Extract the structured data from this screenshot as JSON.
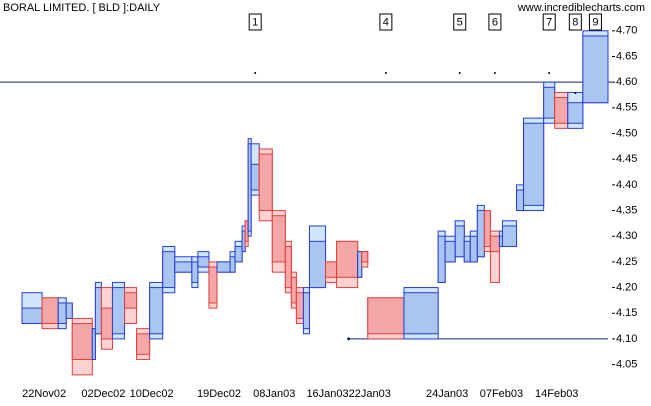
{
  "chart_data": {
    "type": "candlevolume",
    "title": "BORAL LIMITED. [ BLD ]:DAILY",
    "source": "www.incrediblecharts.com",
    "colors": {
      "up": "#2a3fd0",
      "down": "#e04040",
      "line": "#1a2080"
    },
    "ylim": [
      4.02,
      4.76
    ],
    "yticks": [
      4.05,
      {
        "value": 4.1,
        "label": "4.10"
      },
      4.15,
      {
        "value": 4.2,
        "label": "4.20"
      },
      4.25,
      {
        "value": 4.3,
        "label": "4.30"
      },
      4.35,
      {
        "value": 4.4,
        "label": "4.40"
      },
      4.45,
      {
        "value": 4.5,
        "label": "4.50"
      },
      4.55,
      {
        "value": 4.6,
        "label": "4.60"
      },
      4.65,
      {
        "value": 4.7,
        "label": "4.70"
      }
    ],
    "lines": [
      {
        "value": 4.6
      },
      {
        "value": 4.1
      }
    ],
    "candles": [
      {
        "date": null,
        "note": null,
        "volume": 20,
        "open": 4.13,
        "high": 4.19,
        "low": 4.13,
        "close": 4.16
      },
      {
        "date": "22Nov02",
        "note": null,
        "volume": 16,
        "open": 4.18,
        "high": 4.18,
        "low": 4.12,
        "close": 4.13
      },
      {
        "date": null,
        "note": null,
        "volume": 8,
        "open": 4.13,
        "high": 4.18,
        "low": 4.12,
        "close": 4.17
      },
      {
        "date": null,
        "note": null,
        "volume": 6,
        "open": 4.14,
        "high": 4.17,
        "low": 4.14,
        "close": 4.17
      },
      {
        "date": null,
        "note": null,
        "volume": 20,
        "open": 4.13,
        "high": 4.14,
        "low": 4.03,
        "close": 4.06
      },
      {
        "date": null,
        "note": null,
        "volume": 3,
        "open": 4.06,
        "high": 4.12,
        "low": 4.06,
        "close": 4.12
      },
      {
        "date": null,
        "note": null,
        "volume": 6,
        "open": 4.11,
        "high": 4.21,
        "low": 4.11,
        "close": 4.2
      },
      {
        "date": "02Dec02",
        "note": null,
        "volume": 11,
        "open": 4.16,
        "high": 4.2,
        "low": 4.08,
        "close": 4.1
      },
      {
        "date": null,
        "note": null,
        "volume": 12,
        "open": 4.11,
        "high": 4.21,
        "low": 4.1,
        "close": 4.2
      },
      {
        "date": null,
        "note": null,
        "volume": 12,
        "open": 4.19,
        "high": 4.2,
        "low": 4.13,
        "close": 4.16
      },
      {
        "date": null,
        "note": null,
        "volume": 13,
        "open": 4.11,
        "high": 4.12,
        "low": 4.06,
        "close": 4.07
      },
      {
        "date": "10Dec02",
        "note": null,
        "volume": 13,
        "open": 4.11,
        "high": 4.21,
        "low": 4.1,
        "close": 4.2
      },
      {
        "date": null,
        "note": null,
        "volume": 12,
        "open": 4.2,
        "high": 4.28,
        "low": 4.19,
        "close": 4.27
      },
      {
        "date": null,
        "note": null,
        "volume": 17,
        "open": 4.23,
        "high": 4.26,
        "low": 4.23,
        "close": 4.25
      },
      {
        "date": null,
        "note": null,
        "volume": 6,
        "open": 4.21,
        "high": 4.26,
        "low": 4.2,
        "close": 4.25
      },
      {
        "date": null,
        "note": null,
        "volume": 11,
        "open": 4.24,
        "high": 4.27,
        "low": 4.23,
        "close": 4.26
      },
      {
        "date": null,
        "note": null,
        "volume": 8,
        "open": 4.24,
        "high": 4.25,
        "low": 4.16,
        "close": 4.17
      },
      {
        "date": "19Dec02",
        "note": null,
        "volume": 13,
        "open": 4.23,
        "high": 4.25,
        "low": 4.23,
        "close": 4.25
      },
      {
        "date": null,
        "note": null,
        "volume": 5,
        "open": 4.23,
        "high": 4.27,
        "low": 4.23,
        "close": 4.26
      },
      {
        "date": null,
        "note": null,
        "volume": 7,
        "open": 4.25,
        "high": 4.29,
        "low": 4.25,
        "close": 4.28
      },
      {
        "date": null,
        "note": null,
        "volume": 3,
        "open": 4.27,
        "high": 4.32,
        "low": 4.27,
        "close": 4.31
      },
      {
        "date": null,
        "note": null,
        "volume": 3,
        "open": 4.33,
        "high": 4.33,
        "low": 4.28,
        "close": 4.29
      },
      {
        "date": null,
        "note": null,
        "volume": 3,
        "open": 4.31,
        "high": 4.49,
        "low": 4.3,
        "close": 4.48
      },
      {
        "date": null,
        "note": "1",
        "volume": 8,
        "open": 4.39,
        "high": 4.48,
        "low": 4.38,
        "close": 4.44
      },
      {
        "date": null,
        "note": null,
        "volume": 13,
        "open": 4.46,
        "high": 4.47,
        "low": 4.33,
        "close": 4.35
      },
      {
        "date": "08Jan03",
        "note": null,
        "volume": 13,
        "open": 4.34,
        "high": 4.35,
        "low": 4.23,
        "close": 4.25
      },
      {
        "date": null,
        "note": null,
        "volume": 6,
        "open": 4.28,
        "high": 4.29,
        "low": 4.19,
        "close": 4.2
      },
      {
        "date": null,
        "note": null,
        "volume": 5,
        "open": 4.22,
        "high": 4.23,
        "low": 4.16,
        "close": 4.17
      },
      {
        "date": null,
        "note": null,
        "volume": 7,
        "open": 4.19,
        "high": 4.2,
        "low": 4.13,
        "close": 4.14
      },
      {
        "date": null,
        "note": null,
        "volume": 6,
        "open": 4.12,
        "high": 4.2,
        "low": 4.11,
        "close": 4.19
      },
      {
        "date": null,
        "note": null,
        "volume": 16,
        "open": 4.2,
        "high": 4.32,
        "low": 4.2,
        "close": 4.29
      },
      {
        "date": "16Jan03",
        "note": null,
        "volume": 11,
        "open": 4.25,
        "high": 4.25,
        "low": 4.21,
        "close": 4.22
      },
      {
        "date": null,
        "note": null,
        "volume": 21,
        "open": 4.29,
        "high": 4.29,
        "low": 4.2,
        "close": 4.22
      },
      {
        "date": null,
        "note": null,
        "volume": 4,
        "open": 4.22,
        "high": 4.27,
        "low": 4.22,
        "close": 4.27
      },
      {
        "date": null,
        "note": null,
        "volume": 6,
        "open": 4.27,
        "high": 4.27,
        "low": 4.24,
        "close": 4.25
      },
      {
        "date": "22Jan03",
        "note": "4",
        "volume": 36,
        "open": 4.18,
        "high": 4.18,
        "low": 4.1,
        "close": 4.11
      },
      {
        "date": null,
        "note": null,
        "volume": 34,
        "open": 4.11,
        "high": 4.2,
        "low": 4.1,
        "close": 4.19
      },
      {
        "date": null,
        "note": null,
        "volume": 7,
        "open": 4.21,
        "high": 4.31,
        "low": 4.21,
        "close": 4.3
      },
      {
        "date": "24Jan03",
        "note": null,
        "volume": 10,
        "open": 4.25,
        "high": 4.3,
        "low": 4.25,
        "close": 4.29
      },
      {
        "date": null,
        "note": "5",
        "volume": 9,
        "open": 4.26,
        "high": 4.33,
        "low": 4.26,
        "close": 4.32
      },
      {
        "date": null,
        "note": null,
        "volume": 6,
        "open": 4.25,
        "high": 4.3,
        "low": 4.25,
        "close": 4.29
      },
      {
        "date": null,
        "note": null,
        "volume": 7,
        "open": 4.25,
        "high": 4.31,
        "low": 4.25,
        "close": 4.3
      },
      {
        "date": null,
        "note": null,
        "volume": 7,
        "open": 4.26,
        "high": 4.36,
        "low": 4.26,
        "close": 4.35
      },
      {
        "date": null,
        "note": null,
        "volume": 6,
        "open": 4.35,
        "high": 4.35,
        "low": 4.27,
        "close": 4.28
      },
      {
        "date": null,
        "note": "6",
        "volume": 9,
        "open": 4.3,
        "high": 4.31,
        "low": 4.21,
        "close": 4.27
      },
      {
        "date": "07Feb03",
        "note": null,
        "volume": 3,
        "open": 4.28,
        "high": 4.31,
        "low": 4.28,
        "close": 4.3
      },
      {
        "date": null,
        "note": null,
        "volume": 14,
        "open": 4.28,
        "high": 4.33,
        "low": 4.28,
        "close": 4.32
      },
      {
        "date": null,
        "note": null,
        "volume": 7,
        "open": 4.35,
        "high": 4.4,
        "low": 4.35,
        "close": 4.39
      },
      {
        "date": null,
        "note": null,
        "volume": 20,
        "open": 4.36,
        "high": 4.53,
        "low": 4.35,
        "close": 4.52
      },
      {
        "date": null,
        "note": "7",
        "volume": 11,
        "open": 4.53,
        "high": 4.6,
        "low": 4.52,
        "close": 4.59
      },
      {
        "date": "14Feb03",
        "note": null,
        "volume": 13,
        "open": 4.57,
        "high": 4.58,
        "low": 4.51,
        "close": 4.52
      },
      {
        "date": null,
        "note": "8",
        "volume": 15,
        "open": 4.52,
        "high": 4.58,
        "low": 4.51,
        "close": 4.56
      },
      {
        "date": null,
        "note": "9",
        "volume": 25,
        "open": 4.56,
        "high": 4.7,
        "low": 4.56,
        "close": 4.69
      }
    ]
  }
}
